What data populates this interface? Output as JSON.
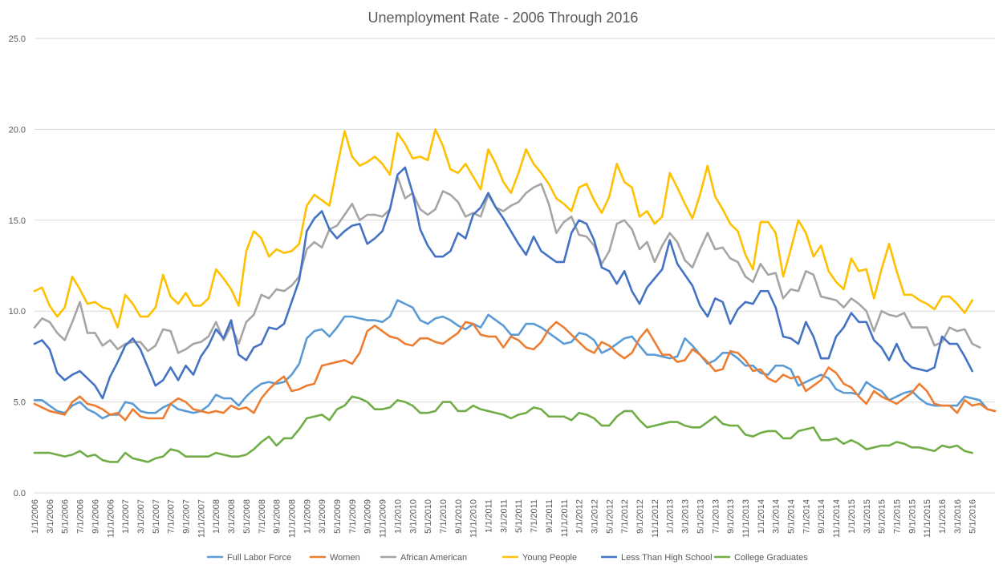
{
  "chart_data": {
    "type": "line",
    "title": "Unemployment Rate - 2006 Through 2016",
    "xlabel": "",
    "ylabel": "",
    "ylim": [
      0,
      25
    ],
    "yticks": [
      "0.0",
      "5.0",
      "10.0",
      "15.0",
      "20.0",
      "25.0"
    ],
    "grid": "horizontal",
    "legend_position": "bottom",
    "x_tick_labels": [
      "1/1/2006",
      "3/1/2006",
      "5/1/2006",
      "7/1/2006",
      "9/1/2006",
      "11/1/2006",
      "1/1/2007",
      "3/1/2007",
      "5/1/2007",
      "7/1/2007",
      "9/1/2007",
      "11/1/2007",
      "1/1/2008",
      "3/1/2008",
      "5/1/2008",
      "7/1/2008",
      "9/1/2008",
      "11/1/2008",
      "1/1/2009",
      "3/1/2009",
      "5/1/2009",
      "7/1/2009",
      "9/1/2009",
      "11/1/2009",
      "1/1/2010",
      "3/1/2010",
      "5/1/2010",
      "7/1/2010",
      "9/1/2010",
      "11/1/2010",
      "1/1/2011",
      "3/1/2011",
      "5/1/2011",
      "7/1/2011",
      "9/1/2011",
      "11/1/2011",
      "1/1/2012",
      "3/1/2012",
      "5/1/2012",
      "7/1/2012",
      "9/1/2012",
      "11/1/2012",
      "1/1/2013",
      "3/1/2013",
      "5/1/2013",
      "7/1/2013",
      "9/1/2013",
      "11/1/2013",
      "1/1/2014",
      "3/1/2014",
      "5/1/2014",
      "7/1/2014",
      "9/1/2014",
      "11/1/2014",
      "1/1/2015",
      "3/1/2015",
      "5/1/2015",
      "7/1/2015",
      "9/1/2015",
      "11/1/2015",
      "1/1/2016",
      "3/1/2016",
      "5/1/2016"
    ],
    "x_start": "1/1/2006",
    "x_end": "6/1/2016",
    "series": [
      {
        "name": "Full Labor Force",
        "color": "#5B9BD5",
        "values": [
          5.1,
          5.1,
          4.8,
          4.5,
          4.4,
          4.8,
          5.0,
          4.6,
          4.4,
          4.1,
          4.3,
          4.3,
          5.0,
          4.9,
          4.5,
          4.4,
          4.4,
          4.7,
          4.9,
          4.6,
          4.5,
          4.4,
          4.5,
          4.8,
          5.4,
          5.2,
          5.2,
          4.8,
          5.3,
          5.7,
          6.0,
          6.1,
          6.0,
          6.1,
          6.5,
          7.1,
          8.5,
          8.9,
          9.0,
          8.6,
          9.1,
          9.7,
          9.7,
          9.6,
          9.5,
          9.5,
          9.4,
          9.7,
          10.6,
          10.4,
          10.2,
          9.5,
          9.3,
          9.6,
          9.7,
          9.5,
          9.2,
          9.0,
          9.3,
          9.1,
          9.8,
          9.5,
          9.2,
          8.7,
          8.7,
          9.3,
          9.3,
          9.1,
          8.8,
          8.5,
          8.2,
          8.3,
          8.8,
          8.7,
          8.4,
          7.7,
          7.9,
          8.2,
          8.5,
          8.6,
          8.1,
          7.6,
          7.6,
          7.5,
          7.4,
          7.5,
          8.5,
          8.1,
          7.6,
          7.1,
          7.3,
          7.7,
          7.7,
          7.4,
          7.0,
          7.0,
          6.6,
          6.5,
          7.0,
          7.0,
          6.8,
          5.9,
          6.1,
          6.3,
          6.5,
          6.3,
          5.7,
          5.5,
          5.5,
          5.4,
          6.1,
          5.8,
          5.6,
          5.1,
          5.3,
          5.5,
          5.6,
          5.2,
          4.9,
          4.8,
          4.8,
          4.8,
          4.8,
          5.3,
          5.2,
          5.1,
          4.6,
          4.5
        ]
      },
      {
        "name": "Women",
        "color": "#ED7D31",
        "values": [
          4.9,
          4.7,
          4.5,
          4.4,
          4.3,
          5.0,
          5.3,
          4.9,
          4.8,
          4.6,
          4.3,
          4.4,
          4.0,
          4.6,
          4.2,
          4.1,
          4.1,
          4.1,
          4.9,
          5.2,
          5.0,
          4.6,
          4.5,
          4.4,
          4.5,
          4.4,
          4.8,
          4.6,
          4.7,
          4.4,
          5.2,
          5.7,
          6.1,
          6.4,
          5.6,
          5.7,
          5.9,
          6.0,
          7.0,
          7.1,
          7.2,
          7.3,
          7.1,
          7.7,
          8.9,
          9.2,
          8.9,
          8.6,
          8.5,
          8.2,
          8.1,
          8.5,
          8.5,
          8.3,
          8.2,
          8.5,
          8.8,
          9.4,
          9.3,
          8.7,
          8.6,
          8.6,
          8.0,
          8.6,
          8.4,
          8.0,
          7.9,
          8.3,
          9.0,
          9.4,
          9.1,
          8.7,
          8.3,
          7.9,
          7.7,
          8.3,
          8.1,
          7.7,
          7.4,
          7.7,
          8.5,
          9.0,
          8.3,
          7.6,
          7.6,
          7.2,
          7.3,
          7.9,
          7.6,
          7.2,
          6.7,
          6.8,
          7.8,
          7.7,
          7.3,
          6.7,
          6.8,
          6.3,
          6.1,
          6.5,
          6.3,
          6.4,
          5.6,
          5.9,
          6.2,
          6.9,
          6.6,
          6.0,
          5.8,
          5.3,
          4.9,
          5.6,
          5.3,
          5.1,
          4.9,
          5.2,
          5.5,
          6.0,
          5.6,
          4.9,
          4.8,
          4.8,
          4.4,
          5.1,
          4.8,
          4.9,
          4.6,
          4.5
        ]
      },
      {
        "name": "African American",
        "color": "#A5A5A5",
        "values": [
          9.1,
          9.6,
          9.4,
          8.8,
          8.4,
          9.4,
          10.5,
          8.8,
          8.8,
          8.1,
          8.4,
          7.9,
          8.2,
          8.3,
          8.3,
          7.8,
          8.1,
          9.0,
          8.9,
          7.7,
          7.9,
          8.2,
          8.3,
          8.6,
          9.4,
          8.4,
          9.2,
          8.2,
          9.4,
          9.8,
          10.9,
          10.7,
          11.2,
          11.1,
          11.4,
          11.9,
          13.4,
          13.8,
          13.5,
          14.5,
          14.7,
          15.3,
          15.9,
          15.0,
          15.3,
          15.3,
          15.2,
          15.6,
          17.4,
          16.2,
          16.5,
          15.6,
          15.3,
          15.6,
          16.6,
          16.4,
          16.0,
          15.2,
          15.4,
          15.2,
          16.4,
          15.7,
          15.5,
          15.8,
          16.0,
          16.5,
          16.8,
          17.0,
          15.9,
          14.3,
          14.9,
          15.2,
          14.2,
          14.1,
          13.6,
          12.6,
          13.3,
          14.8,
          15.0,
          14.5,
          13.4,
          13.8,
          12.7,
          13.6,
          14.3,
          13.8,
          12.8,
          12.4,
          13.4,
          14.3,
          13.4,
          13.5,
          12.9,
          12.7,
          11.9,
          11.6,
          12.6,
          12.0,
          12.1,
          10.7,
          11.2,
          11.1,
          12.2,
          12.0,
          10.8,
          10.7,
          10.6,
          10.2,
          10.7,
          10.4,
          10.0,
          8.9,
          10.0,
          9.8,
          9.7,
          9.9,
          9.1,
          9.1,
          9.1,
          8.1,
          8.3,
          9.1,
          8.9,
          9.0,
          8.2,
          8.0
        ]
      },
      {
        "name": "Young People",
        "color": "#FFC000",
        "values": [
          11.1,
          11.3,
          10.3,
          9.7,
          10.2,
          11.9,
          11.2,
          10.4,
          10.5,
          10.2,
          10.1,
          9.1,
          10.9,
          10.4,
          9.7,
          9.7,
          10.2,
          12.0,
          10.8,
          10.4,
          11.0,
          10.3,
          10.3,
          10.7,
          12.3,
          11.8,
          11.2,
          10.3,
          13.3,
          14.4,
          14.0,
          13.0,
          13.4,
          13.2,
          13.3,
          13.7,
          15.8,
          16.4,
          16.1,
          15.8,
          17.9,
          19.9,
          18.5,
          18.0,
          18.2,
          18.5,
          18.1,
          17.5,
          19.8,
          19.2,
          18.4,
          18.5,
          18.3,
          20.0,
          19.1,
          17.8,
          17.6,
          18.1,
          17.4,
          16.7,
          18.9,
          18.1,
          17.1,
          16.5,
          17.6,
          18.9,
          18.1,
          17.6,
          17.0,
          16.2,
          15.9,
          15.5,
          16.8,
          17.0,
          16.1,
          15.4,
          16.3,
          18.1,
          17.1,
          16.8,
          15.2,
          15.5,
          14.8,
          15.2,
          17.6,
          16.8,
          15.9,
          15.1,
          16.4,
          18.0,
          16.3,
          15.6,
          14.8,
          14.4,
          13.1,
          12.3,
          14.9,
          14.9,
          14.3,
          11.9,
          13.4,
          15.0,
          14.3,
          13.0,
          13.6,
          12.2,
          11.6,
          11.2,
          12.9,
          12.2,
          12.3,
          10.7,
          12.3,
          13.7,
          12.2,
          10.9,
          10.9,
          10.6,
          10.4,
          10.1,
          10.8,
          10.8,
          10.4,
          9.9,
          10.6
        ]
      },
      {
        "name": "Less Than High School",
        "color": "#4472C4",
        "values": [
          8.2,
          8.4,
          7.9,
          6.6,
          6.2,
          6.5,
          6.7,
          6.3,
          5.9,
          5.2,
          6.4,
          7.2,
          8.1,
          8.5,
          7.9,
          6.9,
          5.9,
          6.2,
          6.9,
          6.2,
          7.0,
          6.5,
          7.5,
          8.1,
          9.0,
          8.5,
          9.5,
          7.6,
          7.3,
          8.0,
          8.2,
          9.1,
          9.0,
          9.3,
          10.5,
          11.7,
          14.4,
          15.1,
          15.5,
          14.5,
          14.0,
          14.4,
          14.7,
          14.8,
          13.7,
          14.0,
          14.4,
          15.6,
          17.5,
          17.9,
          16.5,
          14.5,
          13.6,
          13.0,
          13.0,
          13.3,
          14.3,
          14.0,
          15.3,
          15.7,
          16.5,
          15.7,
          15.1,
          14.4,
          13.7,
          13.1,
          14.1,
          13.3,
          13.0,
          12.7,
          12.7,
          14.3,
          15.0,
          14.8,
          13.9,
          12.4,
          12.2,
          11.5,
          12.2,
          11.1,
          10.4,
          11.3,
          11.8,
          12.3,
          13.9,
          12.6,
          12.0,
          11.4,
          10.3,
          9.7,
          10.7,
          10.5,
          9.3,
          10.1,
          10.5,
          10.4,
          11.1,
          11.1,
          10.2,
          8.6,
          8.5,
          8.2,
          9.4,
          8.6,
          7.4,
          7.4,
          8.6,
          9.1,
          9.9,
          9.4,
          9.4,
          8.4,
          8.0,
          7.3,
          8.2,
          7.3,
          6.9,
          6.8,
          6.7,
          6.9,
          8.6,
          8.2,
          8.2,
          7.5,
          6.7
        ]
      },
      {
        "name": "College Graduates",
        "color": "#70AD47",
        "values": [
          2.2,
          2.2,
          2.2,
          2.1,
          2.0,
          2.1,
          2.3,
          2.0,
          2.1,
          1.8,
          1.7,
          1.7,
          2.2,
          1.9,
          1.8,
          1.7,
          1.9,
          2.0,
          2.4,
          2.3,
          2.0,
          2.0,
          2.0,
          2.0,
          2.2,
          2.1,
          2.0,
          2.0,
          2.1,
          2.4,
          2.8,
          3.1,
          2.6,
          3.0,
          3.0,
          3.5,
          4.1,
          4.2,
          4.3,
          4.0,
          4.6,
          4.8,
          5.3,
          5.2,
          5.0,
          4.6,
          4.6,
          4.7,
          5.1,
          5.0,
          4.8,
          4.4,
          4.4,
          4.5,
          5.0,
          5.0,
          4.5,
          4.5,
          4.8,
          4.6,
          4.5,
          4.4,
          4.3,
          4.1,
          4.3,
          4.4,
          4.7,
          4.6,
          4.2,
          4.2,
          4.2,
          4.0,
          4.4,
          4.3,
          4.1,
          3.7,
          3.7,
          4.2,
          4.5,
          4.5,
          4.0,
          3.6,
          3.7,
          3.8,
          3.9,
          3.9,
          3.7,
          3.6,
          3.6,
          3.9,
          4.2,
          3.8,
          3.7,
          3.7,
          3.2,
          3.1,
          3.3,
          3.4,
          3.4,
          3.0,
          3.0,
          3.4,
          3.5,
          3.6,
          2.9,
          2.9,
          3.0,
          2.7,
          2.9,
          2.7,
          2.4,
          2.5,
          2.6,
          2.6,
          2.8,
          2.7,
          2.5,
          2.5,
          2.4,
          2.3,
          2.6,
          2.5,
          2.6,
          2.3,
          2.2
        ]
      }
    ]
  }
}
